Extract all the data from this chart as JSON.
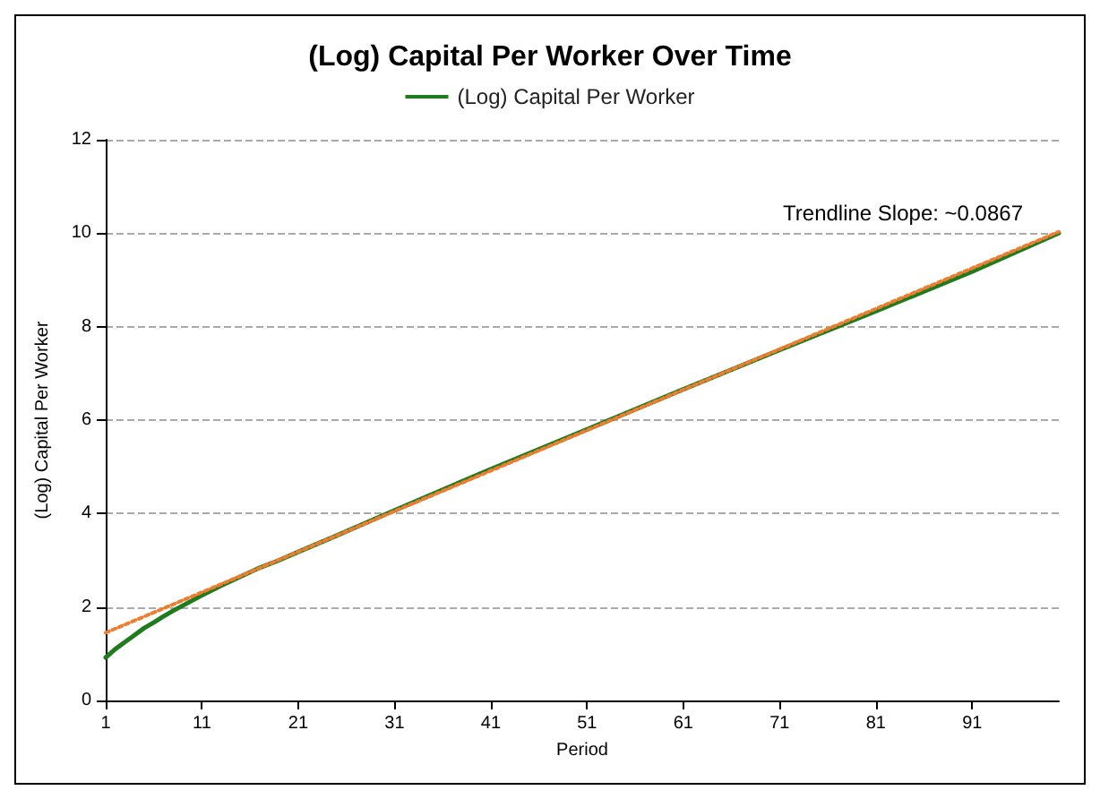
{
  "chart_data": {
    "type": "line",
    "title": "(Log) Capital Per Worker Over Time",
    "xlabel": "Period",
    "ylabel": "(Log) Capital Per Worker",
    "x": [
      1,
      2,
      3,
      4,
      5,
      6,
      7,
      8,
      9,
      10,
      11,
      13,
      15,
      17,
      19,
      21,
      25,
      31,
      41,
      51,
      61,
      71,
      81,
      91,
      100
    ],
    "series": [
      {
        "name": "(Log) Capital Per Worker",
        "color": "#1e7b1e",
        "values": [
          0.92,
          1.1,
          1.25,
          1.4,
          1.55,
          1.67,
          1.8,
          1.92,
          2.03,
          2.14,
          2.25,
          2.46,
          2.65,
          2.84,
          3.0,
          3.18,
          3.53,
          4.07,
          4.95,
          5.8,
          6.66,
          7.5,
          8.33,
          9.18,
          10.0
        ]
      },
      {
        "type": "line",
        "color": "#ed7d31",
        "line_style": "dotted",
        "x": [
          1,
          100
        ],
        "values": [
          1.45,
          10.03
        ]
      }
    ],
    "xlim": [
      1,
      100
    ],
    "xticks": [
      1,
      11,
      21,
      31,
      41,
      51,
      61,
      71,
      81,
      91
    ],
    "ylim": [
      0,
      12
    ],
    "yticks": [
      0,
      2,
      4,
      6,
      8,
      10,
      12
    ],
    "grid": "y",
    "legend": "top",
    "marker": "none",
    "line_style": "solid",
    "annotations": [
      "Trendline Slope: ~0.0867"
    ]
  }
}
